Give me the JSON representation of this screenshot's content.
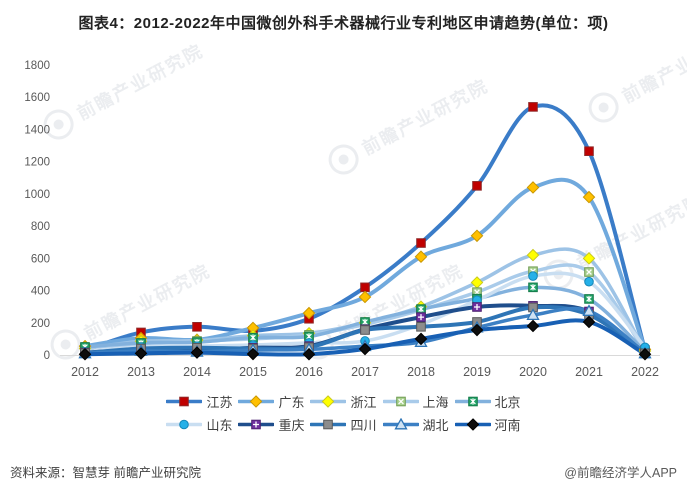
{
  "header": {
    "title": "图表4：2012-2022年中国微创外科手术器械行业专利地区申请趋势(单位：项)"
  },
  "watermark": {
    "text": "前瞻产业研究院"
  },
  "footer": {
    "source": "资料来源：智慧芽 前瞻产业研究院",
    "brand": "@前瞻经济学人APP"
  },
  "chart_data": {
    "type": "line",
    "title": "图表4：2012-2022年中国微创外科手术器械行业专利地区申请趋势(单位：项)",
    "xlabel": "",
    "ylabel": "",
    "x": [
      "2012",
      "2013",
      "2014",
      "2015",
      "2016",
      "2017",
      "2018",
      "2019",
      "2020",
      "2021",
      "2022"
    ],
    "ylim": [
      0,
      1800
    ],
    "ytick_step": 200,
    "grid": false,
    "smooth": true,
    "legend_position": "bottom",
    "series": [
      {
        "id": "jiangsu",
        "name": "江苏",
        "color": "#3a7cc8",
        "width": 4,
        "marker": "square",
        "marker_color": "#c00000",
        "marker_stroke": "#8e2727",
        "values": [
          30,
          140,
          175,
          150,
          225,
          420,
          695,
          1050,
          1540,
          1265,
          30
        ]
      },
      {
        "id": "guangdong",
        "name": "广东",
        "color": "#70a9dd",
        "width": 4,
        "marker": "diamond",
        "marker_color": "#ffc000",
        "marker_stroke": "#c99700",
        "values": [
          55,
          105,
          95,
          168,
          260,
          360,
          610,
          740,
          1040,
          980,
          35
        ]
      },
      {
        "id": "zhejiang",
        "name": "浙江",
        "color": "#9dc3e6",
        "width": 3.5,
        "marker": "diamond",
        "marker_color": "#ffff00",
        "marker_stroke": "#c9c91e",
        "values": [
          40,
          85,
          90,
          120,
          135,
          200,
          300,
          450,
          620,
          600,
          25
        ]
      },
      {
        "id": "shanghai",
        "name": "上海",
        "color": "#a9cbea",
        "width": 3.5,
        "marker": "square-x",
        "marker_color": "#a9d18e",
        "marker_stroke": "#6f9c53",
        "values": [
          45,
          70,
          87,
          100,
          125,
          190,
          280,
          390,
          520,
          515,
          20
        ]
      },
      {
        "id": "beijing",
        "name": "北京",
        "color": "#82b1dd",
        "width": 3.5,
        "marker": "square-asterisk",
        "marker_color": "#21a366",
        "marker_stroke": "#157a4a",
        "values": [
          50,
          75,
          80,
          108,
          115,
          205,
          285,
          350,
          420,
          348,
          20
        ]
      },
      {
        "id": "shandong",
        "name": "山东",
        "color": "#c9def1",
        "width": 3.5,
        "marker": "circle",
        "marker_color": "#25b0e8",
        "marker_stroke": "#1587b8",
        "values": [
          20,
          50,
          55,
          62,
          75,
          87,
          190,
          340,
          490,
          455,
          48
        ]
      },
      {
        "id": "chongqing",
        "name": "重庆",
        "color": "#1f4e8c",
        "width": 4,
        "marker": "square-plus",
        "marker_color": "#7030a0",
        "marker_stroke": "#4d2070",
        "values": [
          15,
          30,
          25,
          45,
          55,
          160,
          235,
          298,
          305,
          270,
          10
        ]
      },
      {
        "id": "sichuan",
        "name": "四川",
        "color": "#2e75b6",
        "width": 4,
        "marker": "square",
        "marker_color": "#8c8c8c",
        "marker_stroke": "#595959",
        "values": [
          12,
          40,
          45,
          40,
          48,
          155,
          175,
          205,
          295,
          250,
          10
        ]
      },
      {
        "id": "hubei",
        "name": "湖北",
        "color": "#3c80c4",
        "width": 3.5,
        "marker": "triangle",
        "marker_color": "#cfe2f3",
        "marker_stroke": "#2e75b6",
        "values": [
          10,
          25,
          20,
          30,
          35,
          55,
          80,
          170,
          248,
          273,
          10
        ]
      },
      {
        "id": "henan",
        "name": "河南",
        "color": "#1860b4",
        "width": 4,
        "marker": "diamond",
        "marker_color": "#0d0d0d",
        "marker_stroke": "#000000",
        "values": [
          5,
          10,
          15,
          6,
          5,
          37,
          100,
          155,
          180,
          205,
          5
        ]
      }
    ]
  }
}
